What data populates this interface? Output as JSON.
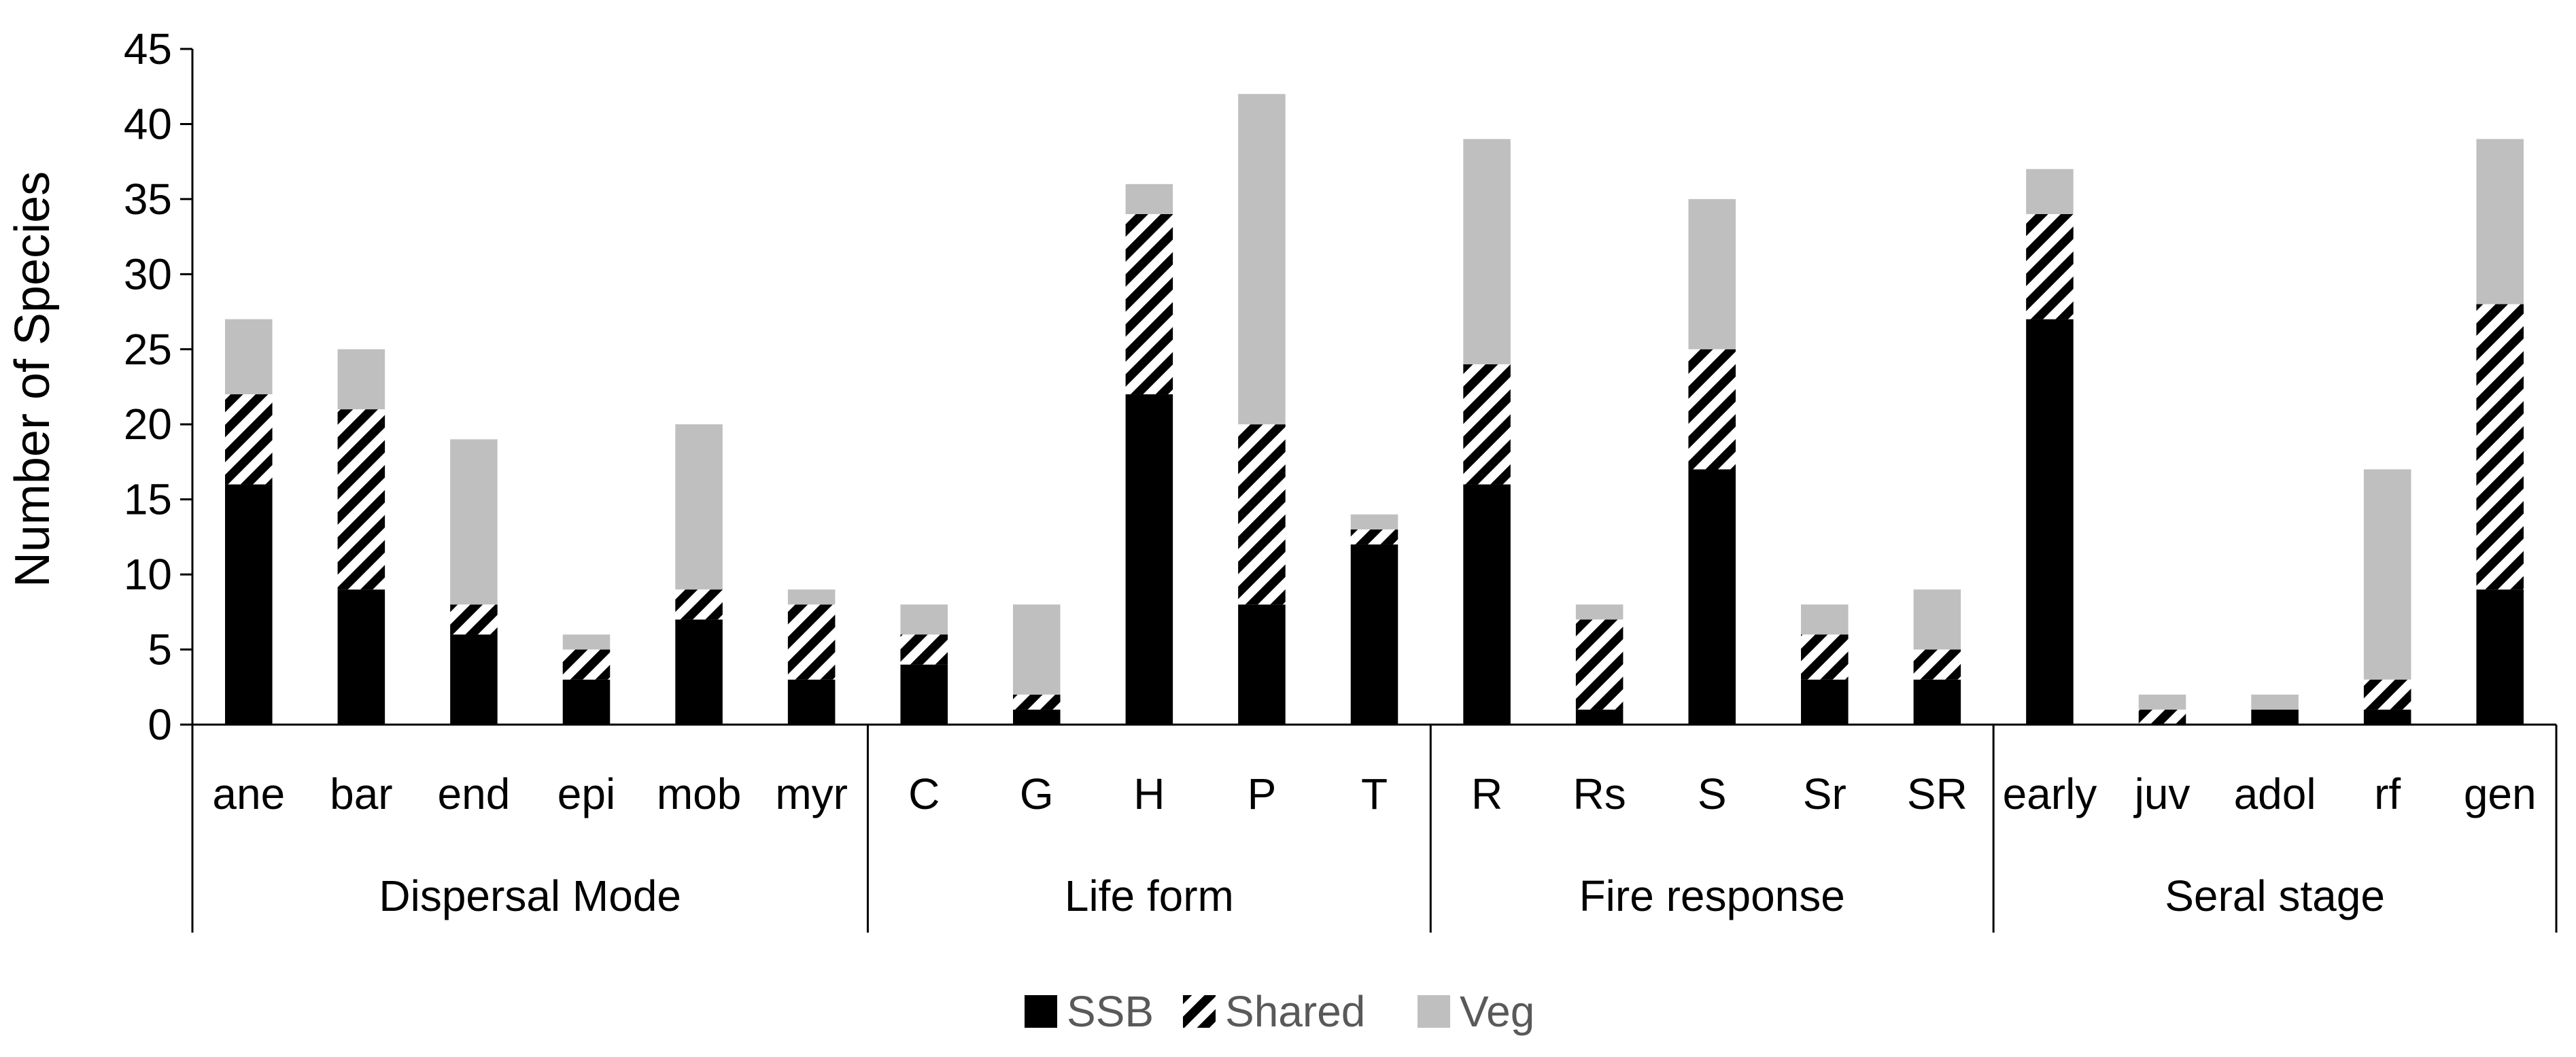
{
  "chart_data": {
    "type": "bar",
    "stacked": true,
    "title": "",
    "xlabel": "",
    "ylabel": "Number of Species",
    "ylim": [
      0,
      45
    ],
    "yticks": [
      0,
      5,
      10,
      15,
      20,
      25,
      30,
      35,
      40,
      45
    ],
    "grid": false,
    "legend_position": "bottom",
    "groups": [
      {
        "label": "Dispersal Mode",
        "categories": [
          "ane",
          "bar",
          "end",
          "epi",
          "mob",
          "myr"
        ]
      },
      {
        "label": "Life form",
        "categories": [
          "C",
          "G",
          "H",
          "P",
          "T"
        ]
      },
      {
        "label": "Fire response",
        "categories": [
          "R",
          "Rs",
          "S",
          "Sr",
          "SR"
        ]
      },
      {
        "label": "Seral stage",
        "categories": [
          "early",
          "juv",
          "adol",
          "rf",
          "gen"
        ]
      }
    ],
    "series": [
      {
        "name": "SSB",
        "color": "#000000",
        "pattern": "solid",
        "values": [
          16,
          9,
          6,
          3,
          7,
          3,
          4,
          1,
          22,
          8,
          12,
          16,
          1,
          17,
          3,
          3,
          27,
          0,
          1,
          1,
          9
        ]
      },
      {
        "name": "Shared",
        "color": "#000000",
        "pattern": "diagonal-hatch",
        "values": [
          6,
          12,
          2,
          2,
          2,
          5,
          2,
          1,
          12,
          12,
          1,
          8,
          6,
          8,
          3,
          2,
          7,
          1,
          0,
          2,
          19
        ]
      },
      {
        "name": "Veg",
        "color": "#bfbfbf",
        "pattern": "solid",
        "values": [
          5,
          4,
          11,
          1,
          11,
          1,
          2,
          6,
          2,
          22,
          1,
          15,
          1,
          10,
          2,
          4,
          3,
          1,
          1,
          14,
          11
        ]
      }
    ]
  }
}
